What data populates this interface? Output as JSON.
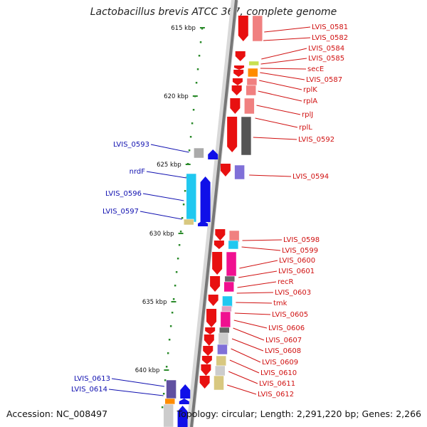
{
  "title": "Lactobacillus brevis ATCC 367, complete genome",
  "footer": {
    "accession": "Accession: NC_008497",
    "topology": "Topology: circular; Length: 2,291,220 bp; Genes: 2,266"
  },
  "colors": {
    "forward_arrow": "#e81010",
    "reverse_arrow": "#1010e8",
    "right_label": "#d01010",
    "left_label": "#1010b0",
    "ticks": "#2a8a2a",
    "backbone": "#777777"
  },
  "ticks": [
    {
      "label": "615 kbp"
    },
    {
      "label": "620 kbp"
    },
    {
      "label": "625 kbp"
    },
    {
      "label": "630 kbp"
    },
    {
      "label": "635 kbp"
    },
    {
      "label": "640 kbp"
    }
  ],
  "right_labels": [
    "LVIS_0581",
    "LVIS_0582",
    "LVIS_0584",
    "LVIS_0585",
    "secE",
    "LVIS_0587",
    "rplK",
    "rplA",
    "rplJ",
    "rplL",
    "LVIS_0592",
    "LVIS_0594",
    "LVIS_0598",
    "LVIS_0599",
    "LVIS_0600",
    "LVIS_0601",
    "recR",
    "LVIS_0603",
    "tmk",
    "LVIS_0605",
    "LVIS_0606",
    "LVIS_0607",
    "LVIS_0608",
    "LVIS_0609",
    "LVIS_0610",
    "LVIS_0611",
    "LVIS_0612"
  ],
  "left_labels": [
    "LVIS_0593",
    "nrdF",
    "LVIS_0596",
    "LVIS_0597",
    "LVIS_0613",
    "LVIS_0614"
  ]
}
